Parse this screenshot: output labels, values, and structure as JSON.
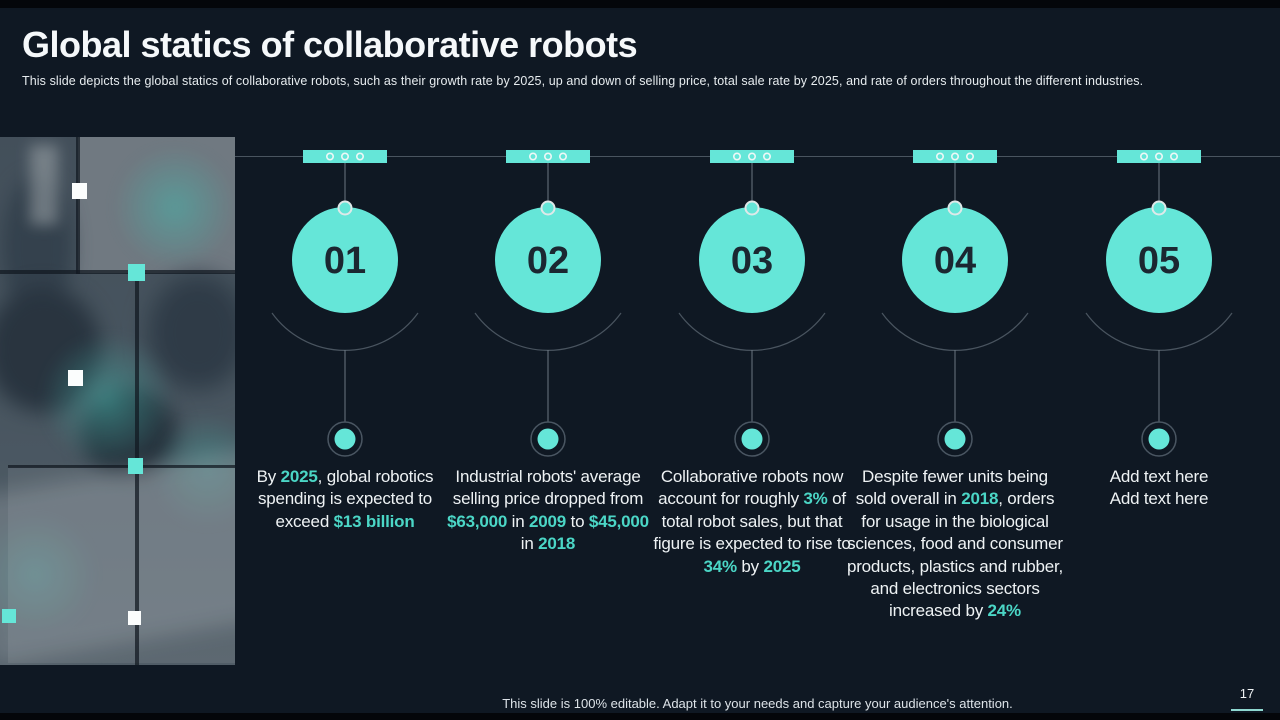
{
  "colors": {
    "accent": "#65e6d8",
    "accent_text": "#4bd6c6",
    "bg": "#0f1823",
    "number": "#1b2731"
  },
  "header": {
    "title": "Global statics of collaborative robots",
    "subtitle": "This slide depicts the global statics of collaborative robots, such as their growth rate by 2025, up and down of selling price, total sale rate by 2025, and rate of orders throughout the different industries."
  },
  "timeline": {
    "items": [
      {
        "number": "01",
        "text_parts": [
          {
            "t": "By ",
            "h": false
          },
          {
            "t": "2025",
            "h": true
          },
          {
            "t": ", global robotics spending is expected to exceed ",
            "h": false
          },
          {
            "t": "$13 billion",
            "h": true
          }
        ]
      },
      {
        "number": "02",
        "text_parts": [
          {
            "t": "Industrial robots' average selling price dropped from ",
            "h": false
          },
          {
            "t": "$63,000",
            "h": true
          },
          {
            "t": " in ",
            "h": false
          },
          {
            "t": "2009",
            "h": true
          },
          {
            "t": " to ",
            "h": false
          },
          {
            "t": "$45,000",
            "h": true
          },
          {
            "t": " in ",
            "h": false
          },
          {
            "t": "2018",
            "h": true
          }
        ]
      },
      {
        "number": "03",
        "text_parts": [
          {
            "t": "Collaborative robots now account for roughly ",
            "h": false
          },
          {
            "t": "3%",
            "h": true
          },
          {
            "t": " of total robot sales, but that figure is expected to rise to ",
            "h": false
          },
          {
            "t": "34%",
            "h": true
          },
          {
            "t": " by ",
            "h": false
          },
          {
            "t": "2025",
            "h": true
          }
        ]
      },
      {
        "number": "04",
        "text_parts": [
          {
            "t": "Despite fewer units being sold overall in ",
            "h": false
          },
          {
            "t": "2018",
            "h": true
          },
          {
            "t": ", orders for usage in the biological sciences, food and consumer products, plastics and rubber, and electronics sectors increased by ",
            "h": false
          },
          {
            "t": "24%",
            "h": true
          }
        ]
      },
      {
        "number": "05",
        "text_parts": [
          {
            "t": "Add text here\nAdd text here",
            "h": false
          }
        ]
      }
    ]
  },
  "footer": {
    "note": "This slide is 100% editable. Adapt it to your needs and capture your audience's attention.",
    "page_number": "17"
  }
}
